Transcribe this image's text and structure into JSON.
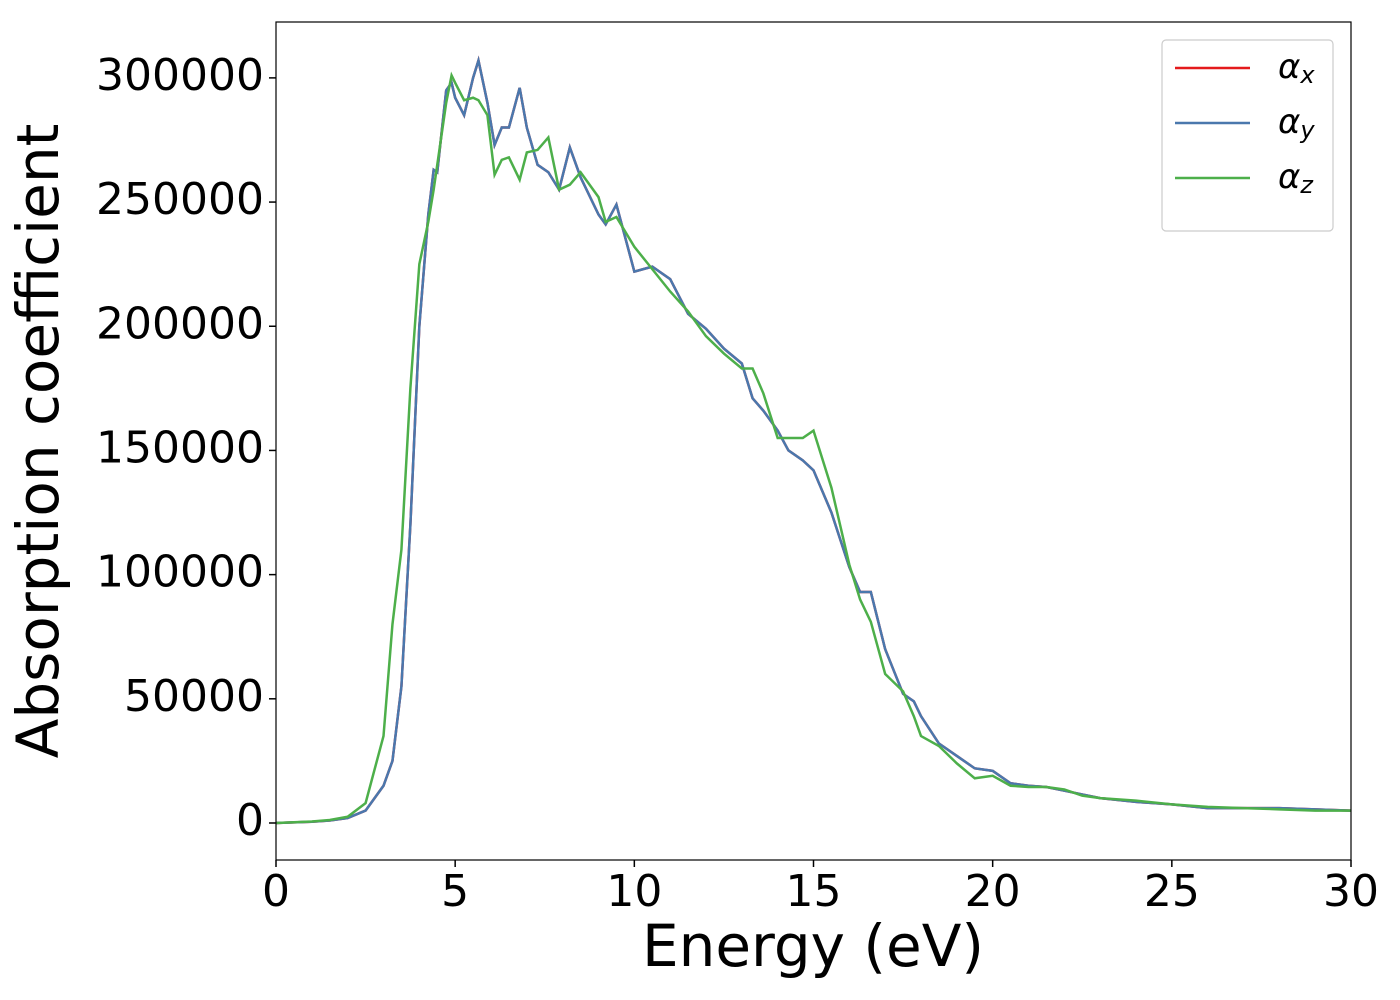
{
  "chart_data": {
    "type": "line",
    "xlabel": "Energy (eV)",
    "ylabel": "Absorption coefficient",
    "x": [
      0,
      1,
      1.5,
      2,
      2.5,
      3,
      3.25,
      3.5,
      3.75,
      4,
      4.25,
      4.4,
      4.5,
      4.75,
      4.9,
      5,
      5.25,
      5.5,
      5.65,
      5.9,
      6.1,
      6.3,
      6.5,
      6.8,
      7,
      7.3,
      7.6,
      7.9,
      8.2,
      8.5,
      9,
      9.2,
      9.5,
      10,
      10.5,
      11,
      11.5,
      12,
      12.5,
      13,
      13.3,
      13.6,
      14,
      14.3,
      14.7,
      15,
      15.5,
      16,
      16.3,
      16.6,
      17,
      17.5,
      17.8,
      18,
      18.5,
      19,
      19.5,
      20,
      20.5,
      21,
      21.5,
      22,
      22.5,
      23,
      24,
      25,
      26,
      27,
      28,
      29,
      30
    ],
    "series": [
      {
        "name": "αx",
        "color": "#e41a1c",
        "values": [
          0,
          500,
          1000,
          2000,
          5000,
          15000,
          25000,
          55000,
          120000,
          200000,
          245000,
          263000,
          262000,
          295000,
          298000,
          292000,
          285000,
          300000,
          307000,
          290000,
          273000,
          280000,
          280000,
          296000,
          280000,
          265000,
          262000,
          255000,
          272000,
          260000,
          245000,
          241000,
          249000,
          222000,
          224000,
          219000,
          205000,
          199000,
          191000,
          185000,
          171000,
          166000,
          158000,
          150000,
          146000,
          142000,
          125000,
          103000,
          93000,
          93000,
          70000,
          52000,
          49000,
          43000,
          32000,
          27000,
          22000,
          21000,
          16000,
          15000,
          14500,
          13000,
          11500,
          10000,
          8500,
          7500,
          6000,
          6000,
          6000,
          5500,
          5000
        ]
      },
      {
        "name": "αy",
        "color": "#4a78ad",
        "values": [
          0,
          500,
          1000,
          2000,
          5000,
          15000,
          25000,
          55000,
          120000,
          200000,
          245000,
          263000,
          262000,
          295000,
          298000,
          292000,
          285000,
          300000,
          307000,
          290000,
          273000,
          280000,
          280000,
          296000,
          280000,
          265000,
          262000,
          255000,
          272000,
          260000,
          245000,
          241000,
          249000,
          222000,
          224000,
          219000,
          205000,
          199000,
          191000,
          185000,
          171000,
          166000,
          158000,
          150000,
          146000,
          142000,
          125000,
          103000,
          93000,
          93000,
          70000,
          52000,
          49000,
          43000,
          32000,
          27000,
          22000,
          21000,
          16000,
          15000,
          14500,
          13000,
          11500,
          10000,
          8500,
          7500,
          6000,
          6000,
          6000,
          5500,
          5000
        ]
      },
      {
        "name": "αz",
        "color": "#4daf4a",
        "values": [
          0,
          600,
          1200,
          2500,
          8000,
          35000,
          80000,
          110000,
          175000,
          225000,
          242000,
          255000,
          265000,
          290000,
          301000,
          298000,
          291000,
          292000,
          291000,
          285000,
          261000,
          267000,
          268000,
          259000,
          270000,
          271000,
          276000,
          255000,
          257000,
          262000,
          252000,
          242000,
          244000,
          232000,
          223000,
          214000,
          206000,
          196000,
          189000,
          183000,
          183000,
          173000,
          155000,
          155000,
          155000,
          158000,
          135000,
          104000,
          90000,
          81000,
          60000,
          53000,
          43000,
          35000,
          31000,
          24000,
          18000,
          19000,
          15000,
          14500,
          14500,
          13500,
          11000,
          10000,
          9000,
          7500,
          6500,
          6000,
          5500,
          5000,
          5000
        ]
      }
    ],
    "xlim": [
      0,
      30
    ],
    "xticks": [
      0,
      5,
      10,
      15,
      20,
      25,
      30
    ],
    "ylim": [
      -14900,
      322500
    ],
    "yticks": [
      0,
      50000,
      100000,
      150000,
      200000,
      250000,
      300000
    ],
    "legend": "upper right"
  }
}
